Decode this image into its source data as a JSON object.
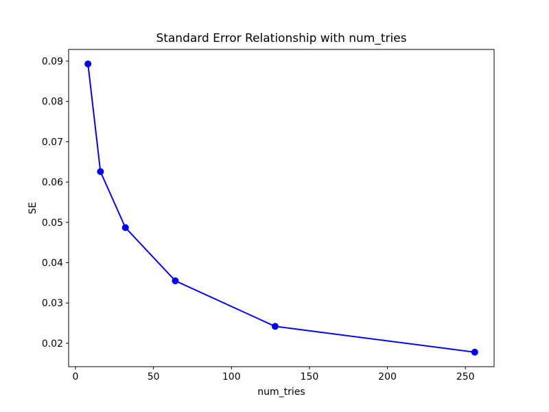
{
  "figure": {
    "background": "#ffffff",
    "text_color": "#000000",
    "spine_color": "#000000"
  },
  "chart_data": {
    "type": "line",
    "title": "Standard Error Relationship with num_tries",
    "xlabel": "num_tries",
    "ylabel": "SE",
    "series": [
      {
        "name": "SE",
        "x": [
          8,
          16,
          32,
          64,
          128,
          256
        ],
        "y": [
          0.0893,
          0.0626,
          0.0487,
          0.0355,
          0.0242,
          0.0178
        ]
      }
    ],
    "line_color": "#0000ff",
    "marker": "circle",
    "marker_radius": 5,
    "line_width": 2,
    "xlim": [
      -4.4,
      268.4
    ],
    "ylim": [
      0.0142,
      0.0929
    ],
    "xticks": [
      0,
      50,
      100,
      150,
      200,
      250
    ],
    "xtick_labels": [
      "0",
      "50",
      "100",
      "150",
      "200",
      "250"
    ],
    "yticks": [
      0.02,
      0.03,
      0.04,
      0.05,
      0.06,
      0.07,
      0.08,
      0.09
    ],
    "ytick_labels": [
      "0.02",
      "0.03",
      "0.04",
      "0.05",
      "0.06",
      "0.07",
      "0.08",
      "0.09"
    ],
    "grid": false,
    "legend": null
  }
}
